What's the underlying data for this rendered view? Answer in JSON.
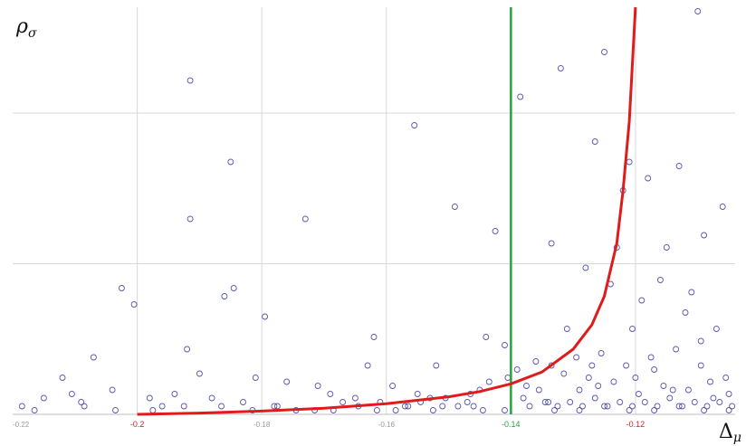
{
  "chart_data": {
    "type": "scatter",
    "title": "",
    "xlabel": "Δ",
    "xlabel_sub": "μ",
    "ylabel": "ρ",
    "ylabel_sub": "σ",
    "xlim": [
      -0.22,
      -0.104
    ],
    "ylim": [
      0,
      1
    ],
    "grid": true,
    "tick_labels": {
      "red": [
        "-0.2",
        "-0.12"
      ],
      "green": [
        "-0.14"
      ],
      "gray": [
        "-0.22",
        "-0.18",
        "-0.16"
      ]
    },
    "tick_values": {
      "red": [
        -0.2,
        -0.12
      ],
      "green": [
        -0.14
      ],
      "gray": [
        -0.22,
        -0.18,
        -0.16
      ]
    },
    "vertical_line": {
      "x": -0.14,
      "color": "#22a63a"
    },
    "curve": {
      "color": "#e01b1b",
      "points": [
        [
          -0.2,
          0.0
        ],
        [
          -0.19,
          0.003
        ],
        [
          -0.18,
          0.008
        ],
        [
          -0.17,
          0.015
        ],
        [
          -0.16,
          0.026
        ],
        [
          -0.15,
          0.043
        ],
        [
          -0.145,
          0.056
        ],
        [
          -0.14,
          0.075
        ],
        [
          -0.135,
          0.104
        ],
        [
          -0.13,
          0.16
        ],
        [
          -0.127,
          0.22
        ],
        [
          -0.125,
          0.29
        ],
        [
          -0.123,
          0.42
        ],
        [
          -0.122,
          0.55
        ],
        [
          -0.121,
          0.72
        ],
        [
          -0.1205,
          0.86
        ],
        [
          -0.12,
          1.0
        ]
      ]
    },
    "series": [
      {
        "marker_color": "#3a3aa0",
        "points": [
          [
            -0.215,
            0.04
          ],
          [
            -0.212,
            0.09
          ],
          [
            -0.209,
            0.03
          ],
          [
            -0.207,
            0.14
          ],
          [
            -0.204,
            0.06
          ],
          [
            -0.2025,
            0.31
          ],
          [
            -0.2005,
            0.27
          ],
          [
            -0.198,
            0.04
          ],
          [
            -0.196,
            0.02
          ],
          [
            -0.194,
            0.05
          ],
          [
            -0.192,
            0.16
          ],
          [
            -0.1915,
            0.82
          ],
          [
            -0.1915,
            0.48
          ],
          [
            -0.19,
            0.1
          ],
          [
            -0.188,
            0.04
          ],
          [
            -0.186,
            0.29
          ],
          [
            -0.185,
            0.62
          ],
          [
            -0.1845,
            0.31
          ],
          [
            -0.183,
            0.03
          ],
          [
            -0.181,
            0.09
          ],
          [
            -0.1795,
            0.24
          ],
          [
            -0.178,
            0.02
          ],
          [
            -0.176,
            0.08
          ],
          [
            -0.173,
            0.48
          ],
          [
            -0.171,
            0.07
          ],
          [
            -0.169,
            0.05
          ],
          [
            -0.167,
            0.03
          ],
          [
            -0.165,
            0.04
          ],
          [
            -0.163,
            0.12
          ],
          [
            -0.162,
            0.19
          ],
          [
            -0.161,
            0.03
          ],
          [
            -0.159,
            0.07
          ],
          [
            -0.157,
            0.02
          ],
          [
            -0.1555,
            0.71
          ],
          [
            -0.155,
            0.05
          ],
          [
            -0.153,
            0.04
          ],
          [
            -0.152,
            0.12
          ],
          [
            -0.151,
            0.02
          ],
          [
            -0.149,
            0.51
          ],
          [
            -0.147,
            0.03
          ],
          [
            -0.146,
            0.02
          ],
          [
            -0.145,
            0.06
          ],
          [
            -0.144,
            0.19
          ],
          [
            -0.1425,
            0.45
          ],
          [
            -0.141,
            0.17
          ],
          [
            -0.139,
            0.11
          ],
          [
            -0.1385,
            0.78
          ],
          [
            -0.138,
            0.04
          ],
          [
            -0.136,
            0.13
          ],
          [
            -0.134,
            0.03
          ],
          [
            -0.1335,
            0.42
          ],
          [
            -0.132,
            0.85
          ],
          [
            -0.131,
            0.21
          ],
          [
            -0.129,
            0.06
          ],
          [
            -0.128,
            0.36
          ],
          [
            -0.127,
            0.12
          ],
          [
            -0.1265,
            0.67
          ],
          [
            -0.126,
            0.07
          ],
          [
            -0.125,
            0.89
          ],
          [
            -0.124,
            0.32
          ],
          [
            -0.123,
            0.41
          ],
          [
            -0.122,
            0.55
          ],
          [
            -0.121,
            0.62
          ],
          [
            -0.1205,
            0.21
          ],
          [
            -0.12,
            0.09
          ],
          [
            -0.119,
            0.28
          ],
          [
            -0.118,
            0.58
          ],
          [
            -0.117,
            0.11
          ],
          [
            -0.116,
            0.33
          ],
          [
            -0.115,
            0.41
          ],
          [
            -0.114,
            0.06
          ],
          [
            -0.113,
            0.61
          ],
          [
            -0.112,
            0.25
          ],
          [
            -0.111,
            0.3
          ],
          [
            -0.11,
            0.99
          ],
          [
            -0.1095,
            0.18
          ],
          [
            -0.109,
            0.44
          ],
          [
            -0.108,
            0.08
          ],
          [
            -0.107,
            0.21
          ],
          [
            -0.106,
            0.51
          ],
          [
            -0.105,
            0.05
          ],
          [
            -0.2105,
            0.05
          ],
          [
            -0.1865,
            0.02
          ],
          [
            -0.1745,
            0.01
          ],
          [
            -0.1685,
            0.01
          ],
          [
            -0.1645,
            0.02
          ],
          [
            -0.1585,
            0.01
          ],
          [
            -0.1545,
            0.03
          ],
          [
            -0.1505,
            0.04
          ],
          [
            -0.1465,
            0.05
          ],
          [
            -0.1435,
            0.08
          ],
          [
            -0.1405,
            0.09
          ],
          [
            -0.1375,
            0.07
          ],
          [
            -0.1355,
            0.06
          ],
          [
            -0.1335,
            0.12
          ],
          [
            -0.1315,
            0.1
          ],
          [
            -0.1295,
            0.14
          ],
          [
            -0.1275,
            0.09
          ],
          [
            -0.1255,
            0.15
          ],
          [
            -0.1235,
            0.08
          ],
          [
            -0.1215,
            0.12
          ],
          [
            -0.1195,
            0.05
          ],
          [
            -0.1175,
            0.14
          ],
          [
            -0.1155,
            0.07
          ],
          [
            -0.1135,
            0.16
          ],
          [
            -0.1115,
            0.06
          ],
          [
            -0.1095,
            0.12
          ],
          [
            -0.1075,
            0.04
          ],
          [
            -0.1055,
            0.09
          ],
          [
            -0.1345,
            0.03
          ],
          [
            -0.1325,
            0.02
          ],
          [
            -0.1305,
            0.03
          ],
          [
            -0.1285,
            0.02
          ],
          [
            -0.1265,
            0.04
          ],
          [
            -0.1245,
            0.02
          ],
          [
            -0.1225,
            0.03
          ],
          [
            -0.1205,
            0.02
          ],
          [
            -0.1185,
            0.03
          ],
          [
            -0.1165,
            0.02
          ],
          [
            -0.1145,
            0.04
          ],
          [
            -0.1125,
            0.02
          ],
          [
            -0.1105,
            0.03
          ],
          [
            -0.1085,
            0.02
          ],
          [
            -0.1065,
            0.03
          ],
          [
            -0.1045,
            0.02
          ],
          [
            -0.141,
            0.01
          ],
          [
            -0.137,
            0.02
          ],
          [
            -0.133,
            0.01
          ],
          [
            -0.129,
            0.01
          ],
          [
            -0.125,
            0.02
          ],
          [
            -0.121,
            0.01
          ],
          [
            -0.117,
            0.01
          ],
          [
            -0.113,
            0.02
          ],
          [
            -0.109,
            0.01
          ],
          [
            -0.105,
            0.01
          ],
          [
            -0.2185,
            0.02
          ],
          [
            -0.2165,
            0.01
          ],
          [
            -0.2085,
            0.02
          ],
          [
            -0.2035,
            0.01
          ],
          [
            -0.1975,
            0.01
          ],
          [
            -0.1925,
            0.02
          ],
          [
            -0.1815,
            0.01
          ],
          [
            -0.1775,
            0.02
          ],
          [
            -0.1715,
            0.01
          ],
          [
            -0.1615,
            0.01
          ],
          [
            -0.1565,
            0.02
          ],
          [
            -0.1525,
            0.01
          ],
          [
            -0.1485,
            0.02
          ],
          [
            -0.1445,
            0.01
          ]
        ]
      }
    ]
  }
}
